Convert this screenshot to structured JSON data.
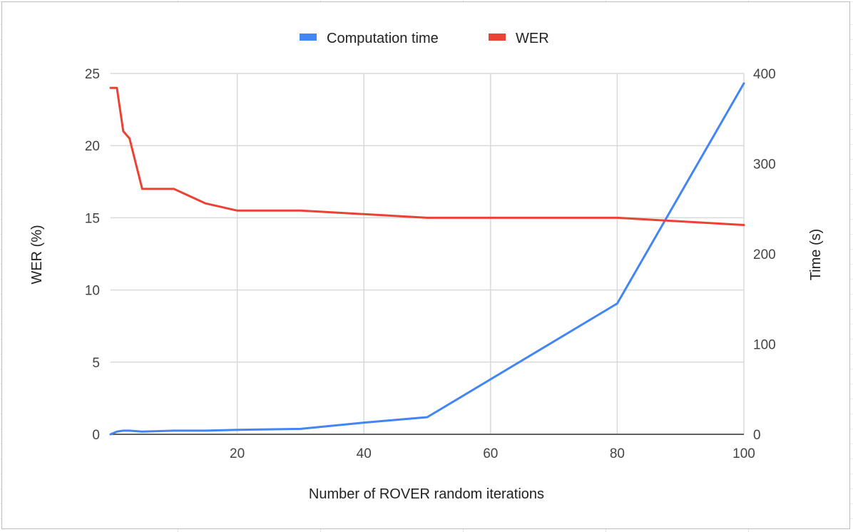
{
  "chart_data": {
    "type": "line",
    "title": "",
    "xlabel": "Number of ROVER random iterations",
    "ylabel_left": "WER (%)",
    "ylabel_right": "Time (s)",
    "x_ticks": [
      "20",
      "40",
      "60",
      "80",
      "100"
    ],
    "y_left_ticks": [
      "0",
      "5",
      "10",
      "15",
      "20",
      "25"
    ],
    "y_right_ticks": [
      "0",
      "100",
      "200",
      "300",
      "400"
    ],
    "xlim": [
      0,
      100
    ],
    "ylim_left": [
      0,
      25
    ],
    "ylim_right": [
      0,
      400
    ],
    "grid": true,
    "legend_position": "top",
    "series": [
      {
        "name": "Computation time",
        "axis": "right",
        "color": "#4285f4",
        "x": [
          0,
          1,
          2,
          3,
          5,
          10,
          15,
          20,
          30,
          40,
          50,
          80,
          100
        ],
        "y": [
          0,
          3,
          4,
          4,
          3,
          4,
          4,
          5,
          6,
          13,
          19,
          145,
          389
        ]
      },
      {
        "name": "WER",
        "axis": "left",
        "color": "#ea4335",
        "x": [
          0,
          1,
          2,
          3,
          5,
          10,
          15,
          20,
          30,
          40,
          50,
          80,
          100
        ],
        "y": [
          24,
          24,
          21,
          20.5,
          17,
          17,
          16,
          15.5,
          15.5,
          15.25,
          15,
          15,
          14.5
        ]
      }
    ]
  }
}
